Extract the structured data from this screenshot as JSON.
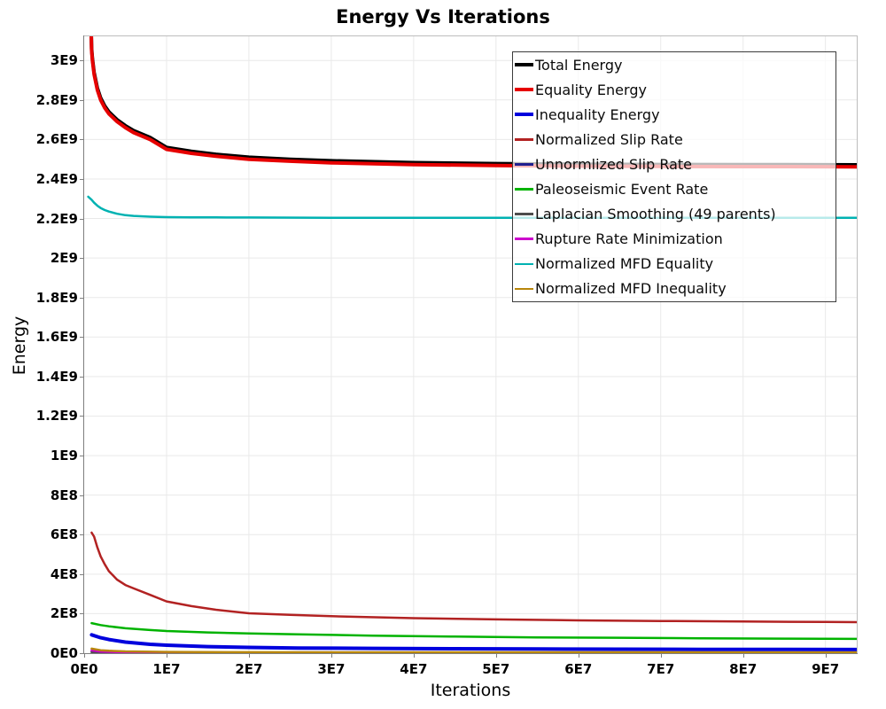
{
  "chart_data": {
    "type": "line",
    "title": "Energy Vs Iterations",
    "xlabel": "Iterations",
    "ylabel": "Energy",
    "xlim": [
      0,
      93800000.0
    ],
    "ylim": [
      0,
      3122000000.0
    ],
    "grid": true,
    "legend_position": "top-right",
    "colors": {
      "grid": "#e9e9e9",
      "axis": "#7f7f7f",
      "plot_border": "#bdbdbd",
      "legend_border": "#3c3c3c"
    },
    "x_ticks": [
      {
        "label": "0E0",
        "value": 0
      },
      {
        "label": "1E7",
        "value": 10000000.0
      },
      {
        "label": "2E7",
        "value": 20000000.0
      },
      {
        "label": "3E7",
        "value": 30000000.0
      },
      {
        "label": "4E7",
        "value": 40000000.0
      },
      {
        "label": "5E7",
        "value": 50000000.0
      },
      {
        "label": "6E7",
        "value": 60000000.0
      },
      {
        "label": "7E7",
        "value": 70000000.0
      },
      {
        "label": "8E7",
        "value": 80000000.0
      },
      {
        "label": "9E7",
        "value": 90000000.0
      }
    ],
    "y_ticks": [
      {
        "label": "0E0",
        "value": 0
      },
      {
        "label": "2E8",
        "value": 200000000.0
      },
      {
        "label": "4E8",
        "value": 400000000.0
      },
      {
        "label": "6E8",
        "value": 600000000.0
      },
      {
        "label": "8E8",
        "value": 800000000.0
      },
      {
        "label": "1E9",
        "value": 1000000000.0
      },
      {
        "label": "1.2E9",
        "value": 1200000000.0
      },
      {
        "label": "1.4E9",
        "value": 1400000000.0
      },
      {
        "label": "1.6E9",
        "value": 1600000000.0
      },
      {
        "label": "1.8E9",
        "value": 1800000000.0
      },
      {
        "label": "2E9",
        "value": 2000000000.0
      },
      {
        "label": "2.2E9",
        "value": 2200000000.0
      },
      {
        "label": "2.4E9",
        "value": 2400000000.0
      },
      {
        "label": "2.6E9",
        "value": 2600000000.0
      },
      {
        "label": "2.8E9",
        "value": 2800000000.0
      },
      {
        "label": "3E9",
        "value": 3000000000.0
      }
    ],
    "series": [
      {
        "name": "Total Energy",
        "color": "#000000",
        "width": 4,
        "points": [
          [
            860000.0,
            3135000000.0
          ],
          [
            900000.0,
            3060000000.0
          ],
          [
            1000000.0,
            3010000000.0
          ],
          [
            1200000.0,
            2940000000.0
          ],
          [
            1600000.0,
            2860000000.0
          ],
          [
            2000000.0,
            2810000000.0
          ],
          [
            2500000.0,
            2770000000.0
          ],
          [
            3000000.0,
            2740000000.0
          ],
          [
            4000000.0,
            2700000000.0
          ],
          [
            5000000.0,
            2670000000.0
          ],
          [
            6000000.0,
            2645000000.0
          ],
          [
            8000000.0,
            2610000000.0
          ],
          [
            10000000.0,
            2560000000.0
          ],
          [
            13000000.0,
            2540000000.0
          ],
          [
            16000000.0,
            2525000000.0
          ],
          [
            20000000.0,
            2510000000.0
          ],
          [
            25000000.0,
            2500000000.0
          ],
          [
            30000000.0,
            2492000000.0
          ],
          [
            40000000.0,
            2483000000.0
          ],
          [
            50000000.0,
            2478000000.0
          ],
          [
            60000000.0,
            2475000000.0
          ],
          [
            70000000.0,
            2473500000.0
          ],
          [
            80000000.0,
            2472800000.0
          ],
          [
            90000000.0,
            2472000000.0
          ],
          [
            93800000.0,
            2471800000.0
          ]
        ]
      },
      {
        "name": "Equality Energy",
        "color": "#e60000",
        "width": 4,
        "points": [
          [
            860000.0,
            3125000000.0
          ],
          [
            900000.0,
            3050000000.0
          ],
          [
            1000000.0,
            3000000000.0
          ],
          [
            1200000.0,
            2930000000.0
          ],
          [
            1600000.0,
            2850000000.0
          ],
          [
            2000000.0,
            2800000000.0
          ],
          [
            2500000.0,
            2760000000.0
          ],
          [
            3000000.0,
            2730000000.0
          ],
          [
            4000000.0,
            2690000000.0
          ],
          [
            5000000.0,
            2660000000.0
          ],
          [
            6000000.0,
            2635000000.0
          ],
          [
            8000000.0,
            2600000000.0
          ],
          [
            10000000.0,
            2550000000.0
          ],
          [
            13000000.0,
            2530000000.0
          ],
          [
            16000000.0,
            2515000000.0
          ],
          [
            20000000.0,
            2500000000.0
          ],
          [
            25000000.0,
            2490000000.0
          ],
          [
            30000000.0,
            2482000000.0
          ],
          [
            40000000.0,
            2473000000.0
          ],
          [
            50000000.0,
            2468000000.0
          ],
          [
            60000000.0,
            2465000000.0
          ],
          [
            70000000.0,
            2463500000.0
          ],
          [
            80000000.0,
            2462800000.0
          ],
          [
            90000000.0,
            2462000000.0
          ],
          [
            93800000.0,
            2461800000.0
          ]
        ]
      },
      {
        "name": "Inequality Energy",
        "color": "#0000dd",
        "width": 4,
        "points": [
          [
            900000.0,
            93000000.0
          ],
          [
            2000000.0,
            78000000.0
          ],
          [
            3000000.0,
            69000000.0
          ],
          [
            5000000.0,
            56000000.0
          ],
          [
            8000000.0,
            45000000.0
          ],
          [
            10000000.0,
            40500000.0
          ],
          [
            15000000.0,
            33000000.0
          ],
          [
            20000000.0,
            29000000.0
          ],
          [
            26000000.0,
            26000000.0
          ],
          [
            35000000.0,
            24000000.0
          ],
          [
            45000000.0,
            22500000.0
          ],
          [
            55000000.0,
            21200000.0
          ],
          [
            65000000.0,
            20200000.0
          ],
          [
            75000000.0,
            19500000.0
          ],
          [
            85000000.0,
            19000000.0
          ],
          [
            93800000.0,
            18500000.0
          ]
        ]
      },
      {
        "name": "Normalized Slip Rate",
        "color": "#b22222",
        "width": 2.5,
        "points": [
          [
            900000.0,
            610000000.0
          ],
          [
            1200000.0,
            590000000.0
          ],
          [
            1600000.0,
            535000000.0
          ],
          [
            2000000.0,
            490000000.0
          ],
          [
            2500000.0,
            450000000.0
          ],
          [
            3000000.0,
            415000000.0
          ],
          [
            4000000.0,
            372000000.0
          ],
          [
            5000000.0,
            345000000.0
          ],
          [
            6000000.0,
            328000000.0
          ],
          [
            8000000.0,
            295000000.0
          ],
          [
            10000000.0,
            262000000.0
          ],
          [
            13000000.0,
            238000000.0
          ],
          [
            16000000.0,
            220000000.0
          ],
          [
            20000000.0,
            202000000.0
          ],
          [
            25000000.0,
            194000000.0
          ],
          [
            30000000.0,
            187000000.0
          ],
          [
            40000000.0,
            177000000.0
          ],
          [
            50000000.0,
            171000000.0
          ],
          [
            60000000.0,
            166000000.0
          ],
          [
            70000000.0,
            163000000.0
          ],
          [
            80000000.0,
            160000000.0
          ],
          [
            90000000.0,
            158000000.0
          ],
          [
            93800000.0,
            157000000.0
          ]
        ]
      },
      {
        "name": "Unnormlized Slip Rate",
        "color": "#1f1f8f",
        "width": 2.5,
        "points": [
          [
            900000.0,
            8000000.0
          ],
          [
            3000000.0,
            4000000.0
          ],
          [
            10000000.0,
            2500000.0
          ],
          [
            50000000.0,
            1800000.0
          ],
          [
            93800000.0,
            1500000.0
          ]
        ]
      },
      {
        "name": "Paleoseismic Event Rate",
        "color": "#00b300",
        "width": 2.5,
        "points": [
          [
            900000.0,
            152000000.0
          ],
          [
            2000000.0,
            142000000.0
          ],
          [
            3000000.0,
            136000000.0
          ],
          [
            5000000.0,
            126000000.0
          ],
          [
            8000000.0,
            117000000.0
          ],
          [
            10000000.0,
            112000000.0
          ],
          [
            15000000.0,
            105000000.0
          ],
          [
            20000000.0,
            100000000.0
          ],
          [
            26000000.0,
            95000000.0
          ],
          [
            35000000.0,
            89000000.0
          ],
          [
            45000000.0,
            84000000.0
          ],
          [
            55000000.0,
            80000000.0
          ],
          [
            65000000.0,
            78000000.0
          ],
          [
            75000000.0,
            75500000.0
          ],
          [
            85000000.0,
            73500000.0
          ],
          [
            93800000.0,
            72000000.0
          ]
        ]
      },
      {
        "name": "Laplacian Smoothing (49 parents)",
        "color": "#4d4d4d",
        "width": 2.5,
        "points": [
          [
            900000.0,
            5000000.0
          ],
          [
            5000000.0,
            2000000.0
          ],
          [
            20000000.0,
            1200000.0
          ],
          [
            93800000.0,
            1000000.0
          ]
        ]
      },
      {
        "name": "Rupture Rate Minimization",
        "color": "#cc00cc",
        "width": 2.5,
        "points": [
          [
            900000.0,
            14000000.0
          ],
          [
            2000000.0,
            8000000.0
          ],
          [
            5000000.0,
            4500000.0
          ],
          [
            10000000.0,
            3000000.0
          ],
          [
            30000000.0,
            2300000.0
          ],
          [
            93800000.0,
            2000000.0
          ]
        ]
      },
      {
        "name": "Normalized MFD Equality",
        "color": "#00b2b2",
        "width": 2.5,
        "points": [
          [
            500000.0,
            2310000000.0
          ],
          [
            900000.0,
            2295000000.0
          ],
          [
            1200000.0,
            2280000000.0
          ],
          [
            1600000.0,
            2265000000.0
          ],
          [
            2000000.0,
            2253000000.0
          ],
          [
            2500000.0,
            2243000000.0
          ],
          [
            3000000.0,
            2235000000.0
          ],
          [
            4000000.0,
            2224000000.0
          ],
          [
            5000000.0,
            2217000000.0
          ],
          [
            6000000.0,
            2213000000.0
          ],
          [
            8000000.0,
            2209000000.0
          ],
          [
            10000000.0,
            2207000000.0
          ],
          [
            13000000.0,
            2206000000.0
          ],
          [
            16000000.0,
            2205500000.0
          ],
          [
            20000000.0,
            2205000000.0
          ],
          [
            30000000.0,
            2204000000.0
          ],
          [
            60000000.0,
            2204000000.0
          ],
          [
            93800000.0,
            2204000000.0
          ]
        ]
      },
      {
        "name": "Normalized MFD Inequality",
        "color": "#b8860b",
        "width": 2.5,
        "points": [
          [
            900000.0,
            23000000.0
          ],
          [
            2000000.0,
            15000000.0
          ],
          [
            3000000.0,
            12000000.0
          ],
          [
            5000000.0,
            9000000.0
          ],
          [
            10000000.0,
            6500000.0
          ],
          [
            20000000.0,
            5000000.0
          ],
          [
            40000000.0,
            4500000.0
          ],
          [
            93800000.0,
            4000000.0
          ]
        ]
      }
    ]
  }
}
